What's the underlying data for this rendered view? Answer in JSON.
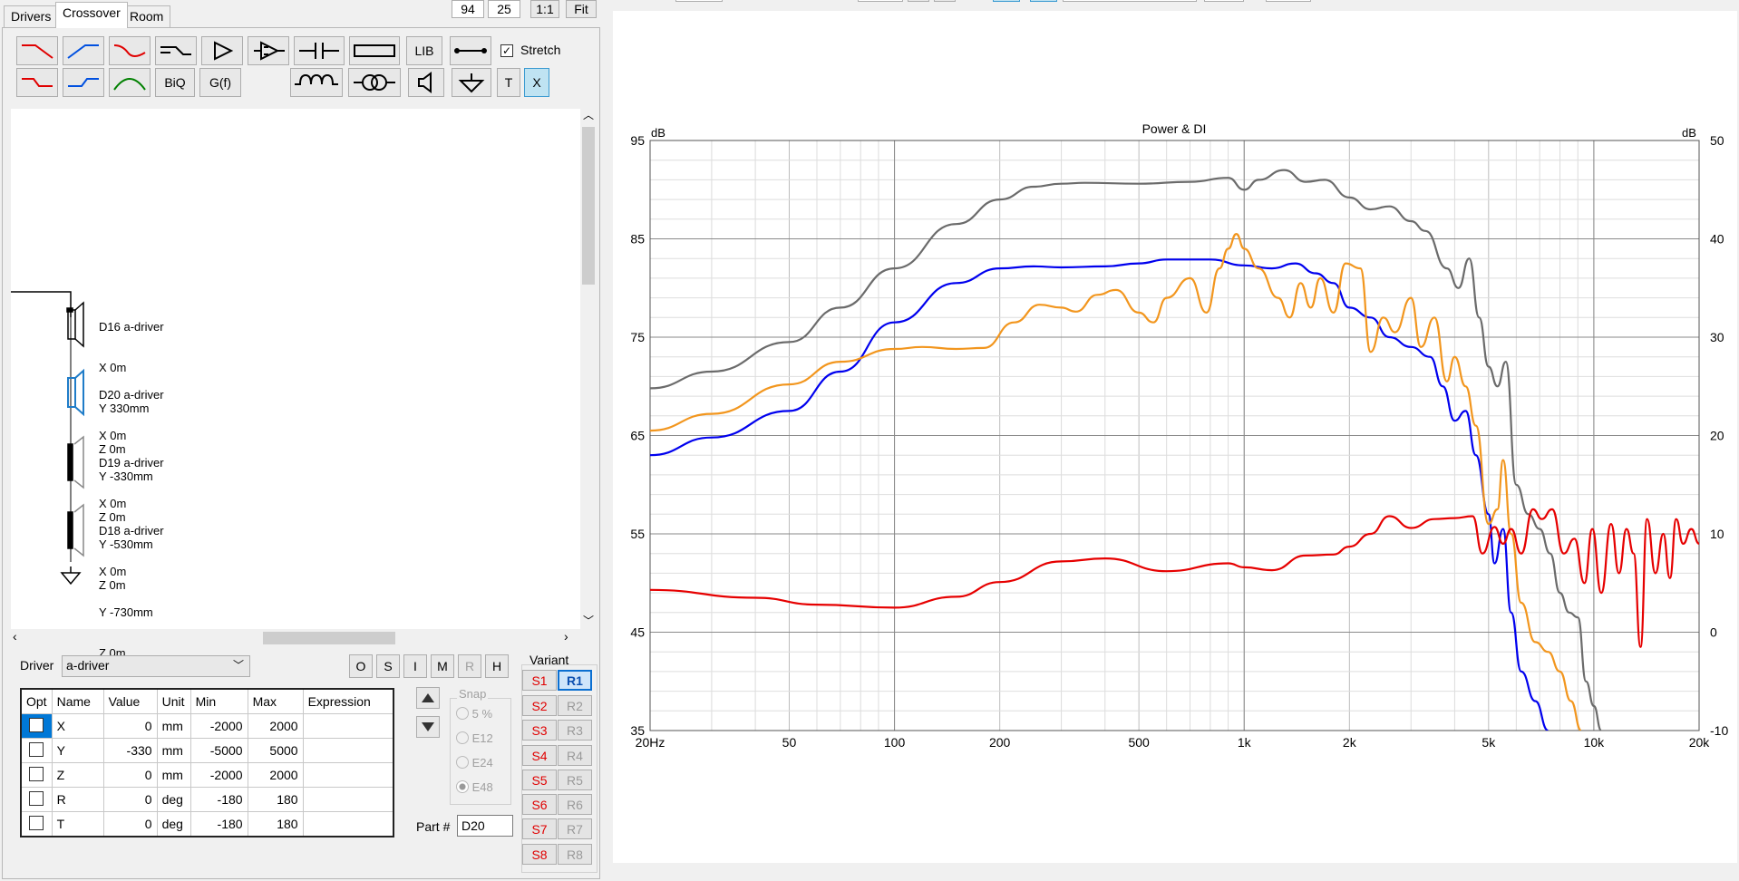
{
  "tabs": [
    "Drivers",
    "Crossover",
    "Room"
  ],
  "top_controls": {
    "field1": "94",
    "field2": "25",
    "one_to_one": "1:1",
    "fit": "Fit"
  },
  "toolbar": {
    "lib": "LIB",
    "stretch": "Stretch",
    "biq": "BiQ",
    "gf": "G(f)",
    "t": "T",
    "x": "X"
  },
  "drivers": [
    {
      "name": "D16 a-driver",
      "x": "X 0m",
      "y": "Y 330mm",
      "z": "Z 0m"
    },
    {
      "name": "D20 a-driver",
      "x": "X 0m",
      "y": "Y -330mm",
      "z": "Z 0m"
    },
    {
      "name": "D19 a-driver",
      "x": "X 0m",
      "y": "Y -530mm",
      "z": "Z 0m"
    },
    {
      "name": "D18 a-driver",
      "x": "X 0m",
      "y": "Y -730mm",
      "z": "Z 0m"
    }
  ],
  "driver_select": {
    "label": "Driver",
    "value": "a-driver"
  },
  "mode_buttons": [
    "O",
    "S",
    "I",
    "M",
    "R",
    "H"
  ],
  "table": {
    "headers": [
      "Opt",
      "Name",
      "Value",
      "Unit",
      "Min",
      "Max",
      "Expression"
    ],
    "rows": [
      {
        "name": "X",
        "value": "0",
        "unit": "mm",
        "min": "-2000",
        "max": "2000"
      },
      {
        "name": "Y",
        "value": "-330",
        "unit": "mm",
        "min": "-5000",
        "max": "5000"
      },
      {
        "name": "Z",
        "value": "0",
        "unit": "mm",
        "min": "-2000",
        "max": "2000"
      },
      {
        "name": "R",
        "value": "0",
        "unit": "deg",
        "min": "-180",
        "max": "180"
      },
      {
        "name": "T",
        "value": "0",
        "unit": "deg",
        "min": "-180",
        "max": "180"
      }
    ]
  },
  "snap": {
    "label": "Snap",
    "options": [
      "5 %",
      "E12",
      "E24",
      "E48"
    ],
    "selected": "E48"
  },
  "part": {
    "label": "Part #",
    "value": "D20"
  },
  "variant": {
    "label": "Variant",
    "s": [
      "S1",
      "S2",
      "S3",
      "S4",
      "S5",
      "S6",
      "S7",
      "S8"
    ],
    "r": [
      "R1",
      "R2",
      "R3",
      "R4",
      "R5",
      "R6",
      "R7",
      "R8"
    ],
    "active": "R1"
  },
  "chart_data": {
    "type": "line",
    "title": "Power & DI",
    "x_scale": "log",
    "xlim": [
      20,
      20000
    ],
    "ylim_left": [
      35,
      95
    ],
    "ylim_right": [
      -10,
      50
    ],
    "ylabel_left": "dB",
    "ylabel_right": "dB",
    "x_tick_labels": [
      "20Hz",
      "50",
      "100",
      "200",
      "500",
      "1k",
      "2k",
      "5k",
      "10k",
      "20k"
    ],
    "y_tick_labels_left": [
      "95",
      "85",
      "75",
      "65",
      "55",
      "45",
      "35"
    ],
    "y_tick_labels_right": [
      "50",
      "40",
      "30",
      "20",
      "10",
      "0",
      "-10"
    ],
    "grid": true,
    "series": [
      {
        "color": "#6b6b6b",
        "axis": "left",
        "points": [
          [
            20,
            69.8
          ],
          [
            30,
            71.5
          ],
          [
            50,
            74.5
          ],
          [
            70,
            78
          ],
          [
            100,
            82
          ],
          [
            150,
            86.5
          ],
          [
            200,
            89
          ],
          [
            250,
            90.3
          ],
          [
            300,
            90.6
          ],
          [
            350,
            90.7
          ],
          [
            500,
            90.6
          ],
          [
            700,
            90.8
          ],
          [
            900,
            91.2
          ],
          [
            1000,
            90.0
          ],
          [
            1100,
            91
          ],
          [
            1300,
            92
          ],
          [
            1500,
            90.8
          ],
          [
            1700,
            91
          ],
          [
            2000,
            89.2
          ],
          [
            2300,
            88
          ],
          [
            2600,
            88.3
          ],
          [
            3000,
            86.8
          ],
          [
            3300,
            85.8
          ],
          [
            3800,
            82
          ],
          [
            4100,
            80
          ],
          [
            4400,
            83
          ],
          [
            4700,
            77
          ],
          [
            5000,
            72
          ],
          [
            5300,
            70
          ],
          [
            5600,
            72.5
          ],
          [
            6000,
            60
          ],
          [
            6500,
            57
          ],
          [
            7000,
            55.5
          ],
          [
            7500,
            53
          ],
          [
            8000,
            49
          ],
          [
            8500,
            47
          ],
          [
            9000,
            46.5
          ],
          [
            9500,
            40
          ],
          [
            10000,
            37.5
          ],
          [
            10500,
            35
          ]
        ]
      },
      {
        "color": "#0000ee",
        "axis": "left",
        "points": [
          [
            20,
            63
          ],
          [
            30,
            64.8
          ],
          [
            50,
            67.5
          ],
          [
            70,
            71.5
          ],
          [
            100,
            76.5
          ],
          [
            150,
            80.5
          ],
          [
            200,
            82
          ],
          [
            250,
            82.2
          ],
          [
            300,
            82.1
          ],
          [
            400,
            82.2
          ],
          [
            500,
            82.5
          ],
          [
            600,
            82.9
          ],
          [
            800,
            82.9
          ],
          [
            1000,
            82.3
          ],
          [
            1200,
            82
          ],
          [
            1400,
            82.5
          ],
          [
            1600,
            81.5
          ],
          [
            1800,
            80.5
          ],
          [
            2000,
            78
          ],
          [
            2300,
            77
          ],
          [
            2600,
            75
          ],
          [
            3000,
            74
          ],
          [
            3400,
            73
          ],
          [
            3700,
            70
          ],
          [
            4000,
            66.5
          ],
          [
            4300,
            67.5
          ],
          [
            4600,
            63
          ],
          [
            5000,
            57
          ],
          [
            5200,
            52
          ],
          [
            5500,
            55.5
          ],
          [
            5800,
            47
          ],
          [
            6200,
            41
          ],
          [
            6800,
            38
          ],
          [
            7400,
            35
          ]
        ]
      },
      {
        "color": "#f2961e",
        "axis": "left",
        "points": [
          [
            20,
            65.5
          ],
          [
            30,
            67.2
          ],
          [
            50,
            70.2
          ],
          [
            70,
            72.5
          ],
          [
            100,
            73.8
          ],
          [
            120,
            74
          ],
          [
            150,
            73.8
          ],
          [
            180,
            73.9
          ],
          [
            220,
            76.5
          ],
          [
            260,
            78.3
          ],
          [
            300,
            78
          ],
          [
            330,
            77.6
          ],
          [
            380,
            79.3
          ],
          [
            430,
            79.8
          ],
          [
            500,
            77.5
          ],
          [
            550,
            76.5
          ],
          [
            600,
            79
          ],
          [
            700,
            81
          ],
          [
            780,
            77.5
          ],
          [
            850,
            82
          ],
          [
            900,
            84
          ],
          [
            950,
            85.5
          ],
          [
            1000,
            84
          ],
          [
            1100,
            82
          ],
          [
            1250,
            79
          ],
          [
            1350,
            77
          ],
          [
            1450,
            80.5
          ],
          [
            1550,
            78
          ],
          [
            1650,
            81
          ],
          [
            1800,
            77.5
          ],
          [
            1950,
            82.5
          ],
          [
            2150,
            82
          ],
          [
            2300,
            73.5
          ],
          [
            2500,
            77
          ],
          [
            2700,
            75.5
          ],
          [
            3000,
            79
          ],
          [
            3200,
            74
          ],
          [
            3500,
            77
          ],
          [
            3800,
            70.5
          ],
          [
            4000,
            73
          ],
          [
            4300,
            70
          ],
          [
            4600,
            66
          ],
          [
            5000,
            56
          ],
          [
            5300,
            57.5
          ],
          [
            5500,
            62.5
          ],
          [
            5800,
            55
          ],
          [
            6200,
            48
          ],
          [
            6800,
            44
          ],
          [
            7400,
            43
          ],
          [
            8000,
            41
          ],
          [
            8600,
            38
          ],
          [
            9200,
            35
          ]
        ]
      },
      {
        "color": "#e60000",
        "axis": "right",
        "points": [
          [
            20,
            4.3
          ],
          [
            40,
            3.5
          ],
          [
            60,
            2.8
          ],
          [
            100,
            2.5
          ],
          [
            150,
            3.6
          ],
          [
            200,
            5.1
          ],
          [
            300,
            7.2
          ],
          [
            400,
            7.5
          ],
          [
            600,
            6.2
          ],
          [
            900,
            7
          ],
          [
            1000,
            6.6
          ],
          [
            1200,
            6.3
          ],
          [
            1500,
            7.8
          ],
          [
            1800,
            7.9
          ],
          [
            2000,
            8.7
          ],
          [
            2300,
            10
          ],
          [
            2600,
            11.8
          ],
          [
            3000,
            10.6
          ],
          [
            3500,
            11.5
          ],
          [
            4000,
            11.6
          ],
          [
            4500,
            11.8
          ],
          [
            4800,
            8
          ],
          [
            5200,
            10.7
          ],
          [
            5500,
            9
          ],
          [
            5800,
            10.5
          ],
          [
            6200,
            8
          ],
          [
            6700,
            12.5
          ],
          [
            7100,
            11.5
          ],
          [
            7600,
            12.5
          ],
          [
            8200,
            8
          ],
          [
            8800,
            9.5
          ],
          [
            9400,
            5
          ],
          [
            9900,
            10.5
          ],
          [
            10500,
            4
          ],
          [
            11200,
            11
          ],
          [
            11800,
            6
          ],
          [
            12400,
            10.5
          ],
          [
            13000,
            8
          ],
          [
            13600,
            -1.5
          ],
          [
            14200,
            11.5
          ],
          [
            15000,
            6
          ],
          [
            15800,
            10
          ],
          [
            16500,
            5.5
          ],
          [
            17200,
            11.5
          ],
          [
            18000,
            9
          ],
          [
            19000,
            10.5
          ],
          [
            20000,
            9
          ]
        ]
      }
    ]
  }
}
